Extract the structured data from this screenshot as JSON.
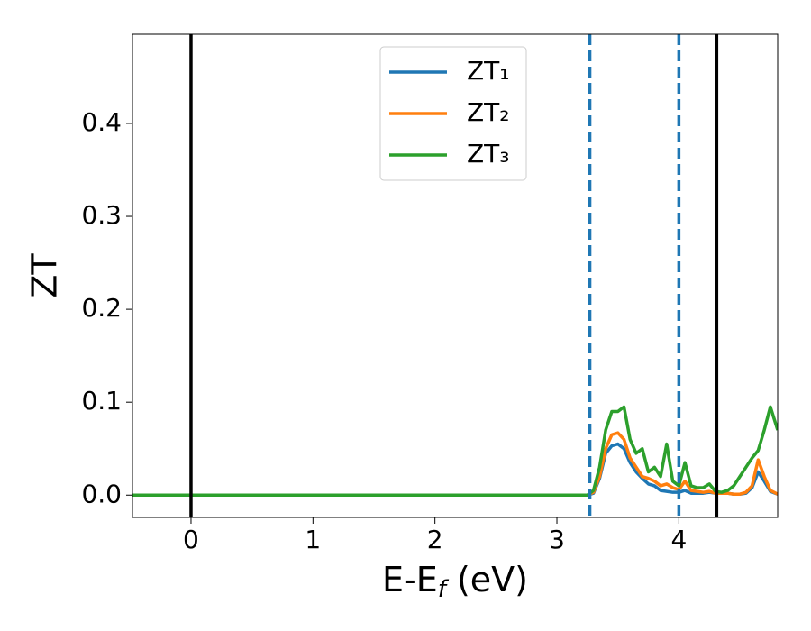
{
  "chart_data": {
    "type": "line",
    "ylabel": "ZT",
    "xlabel_parts": [
      "E-E",
      "f",
      " (eV)"
    ],
    "xlim": [
      -0.48,
      4.81
    ],
    "ylim": [
      -0.024,
      0.496
    ],
    "xticks": [
      0,
      1,
      2,
      3,
      4
    ],
    "yticks": [
      {
        "value": 0,
        "label": "0.0"
      },
      {
        "value": 0.1,
        "label": "0.1"
      },
      {
        "value": 0.2,
        "label": "0.2"
      },
      {
        "value": 0.3,
        "label": "0.3"
      },
      {
        "value": 0.4,
        "label": "0.4"
      }
    ],
    "legend": "upper center",
    "vlines": [
      {
        "x": 0,
        "style": "solid",
        "color": "#000000"
      },
      {
        "x": 4.31,
        "style": "solid",
        "color": "#000000"
      },
      {
        "x": 3.27,
        "style": "dashed",
        "color": "#1f77b4"
      },
      {
        "x": 4.0,
        "style": "dashed",
        "color": "#1f77b4"
      }
    ],
    "x": [
      -0.48,
      3.25,
      3.3,
      3.35,
      3.4,
      3.45,
      3.5,
      3.55,
      3.6,
      3.65,
      3.7,
      3.75,
      3.8,
      3.85,
      3.9,
      3.95,
      4.0,
      4.05,
      4.1,
      4.15,
      4.2,
      4.25,
      4.3,
      4.35,
      4.4,
      4.45,
      4.5,
      4.55,
      4.6,
      4.65,
      4.7,
      4.75,
      4.81
    ],
    "series": [
      {
        "name": "ZT₁",
        "color": "#1f77b4",
        "values": [
          0,
          0,
          0.002,
          0.018,
          0.045,
          0.053,
          0.055,
          0.05,
          0.035,
          0.025,
          0.018,
          0.012,
          0.01,
          0.005,
          0.004,
          0.003,
          0.003,
          0.005,
          0.002,
          0.002,
          0.002,
          0.003,
          0.002,
          0.002,
          0.002,
          0.001,
          0.001,
          0.002,
          0.008,
          0.025,
          0.015,
          0.004,
          0.001
        ]
      },
      {
        "name": "ZT₂",
        "color": "#ff7f0e",
        "values": [
          0,
          0,
          0.003,
          0.02,
          0.05,
          0.065,
          0.067,
          0.06,
          0.04,
          0.03,
          0.02,
          0.018,
          0.015,
          0.01,
          0.012,
          0.008,
          0.006,
          0.015,
          0.005,
          0.004,
          0.003,
          0.004,
          0.002,
          0.002,
          0.002,
          0.001,
          0.001,
          0.003,
          0.01,
          0.038,
          0.02,
          0.005,
          0.001
        ]
      },
      {
        "name": "ZT₃",
        "color": "#2ca02c",
        "values": [
          0,
          0,
          0.005,
          0.03,
          0.07,
          0.09,
          0.09,
          0.095,
          0.06,
          0.045,
          0.05,
          0.025,
          0.03,
          0.02,
          0.055,
          0.015,
          0.01,
          0.035,
          0.01,
          0.008,
          0.008,
          0.012,
          0.004,
          0.003,
          0.005,
          0.01,
          0.02,
          0.03,
          0.04,
          0.048,
          0.07,
          0.095,
          0.07
        ]
      }
    ]
  }
}
